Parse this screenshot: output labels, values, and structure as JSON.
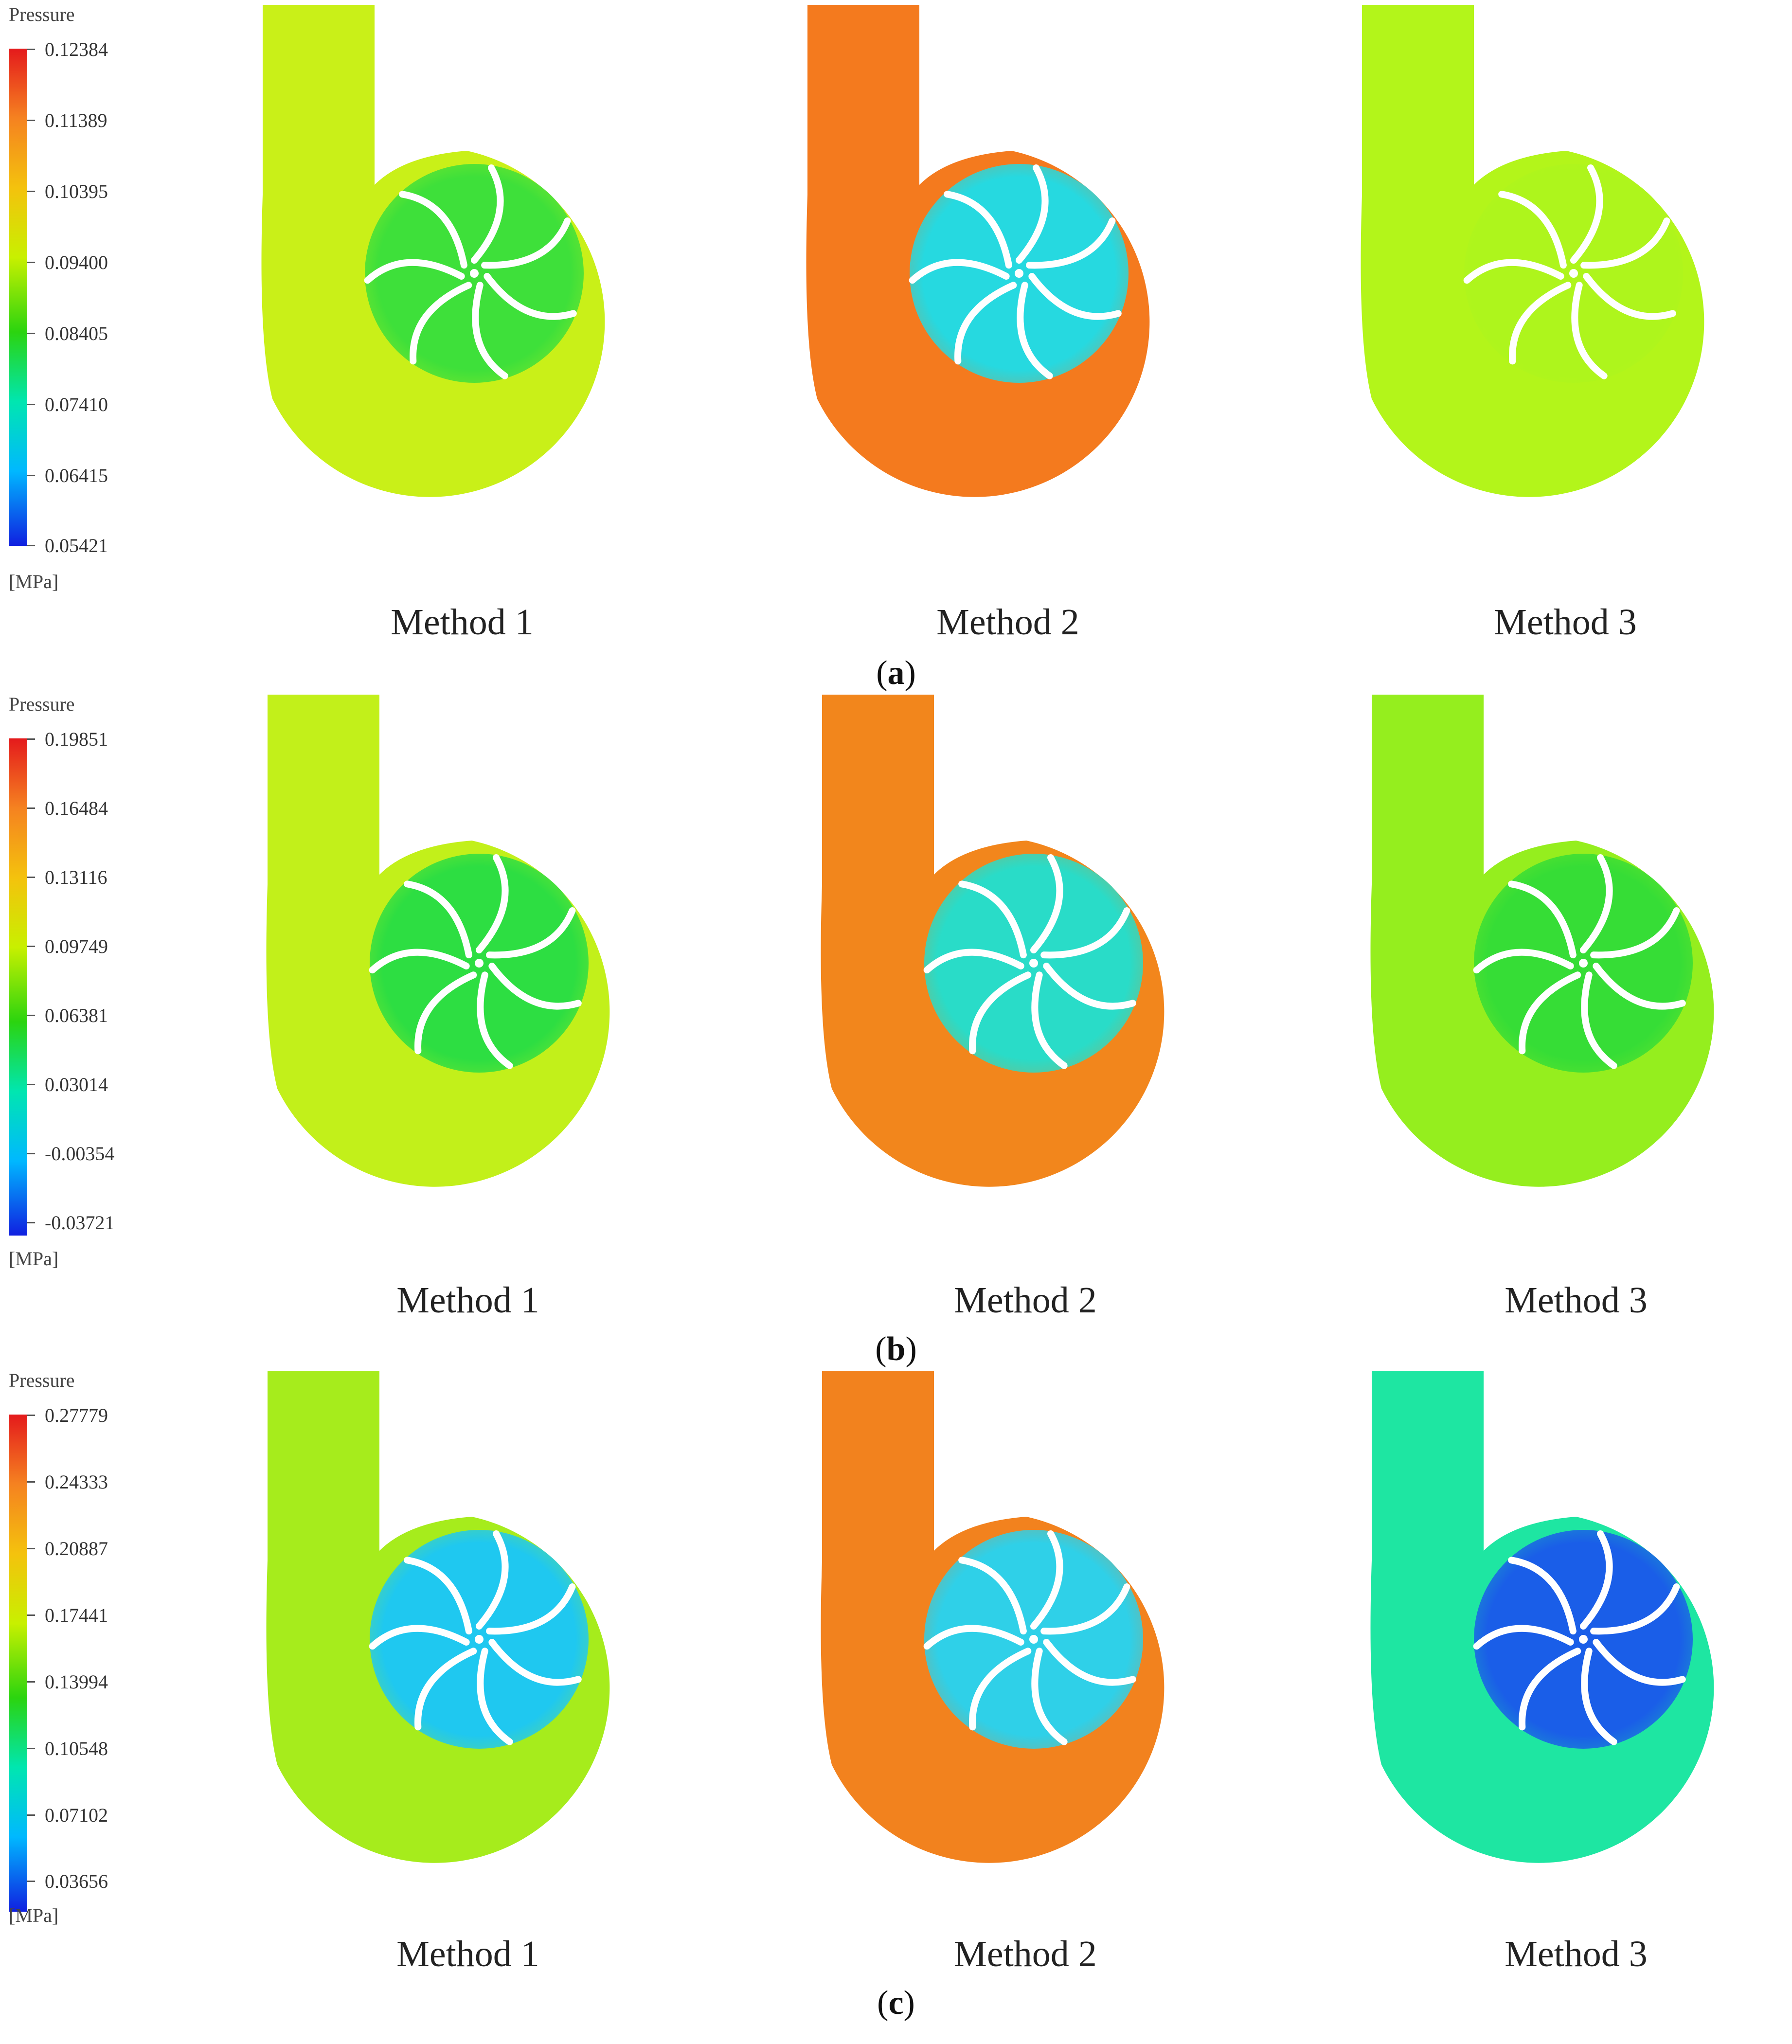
{
  "panels": [
    {
      "label_open": "(",
      "label_letter": "a",
      "label_close": ")",
      "legend": {
        "title": "Pressure",
        "unit": "[MPa]",
        "ticks": [
          "0.12384",
          "0.11389",
          "0.10395",
          "0.09400",
          "0.08405",
          "0.07410",
          "0.06415",
          "0.05421"
        ]
      },
      "methods": [
        {
          "name": "Method 1",
          "outer_color": "#c9f018",
          "inner_color": "#3ee03a"
        },
        {
          "name": "Method 2",
          "outer_color": "#f47a1e",
          "inner_color": "#26d9e0"
        },
        {
          "name": "Method 3",
          "outer_color": "#b3f51a",
          "inner_color": "#aef51c"
        }
      ]
    },
    {
      "label_open": "(",
      "label_letter": "b",
      "label_close": ")",
      "legend": {
        "title": "Pressure",
        "unit": "[MPa]",
        "ticks": [
          "0.19851",
          "0.16484",
          "0.13116",
          "0.09749",
          "0.06381",
          "0.03014",
          "-0.00354",
          "-0.03721"
        ]
      },
      "methods": [
        {
          "name": "Method 1",
          "outer_color": "#c2f01a",
          "inner_color": "#2dde42"
        },
        {
          "name": "Method 2",
          "outer_color": "#f2861c",
          "inner_color": "#29dcc8"
        },
        {
          "name": "Method 3",
          "outer_color": "#95ee1e",
          "inner_color": "#36dd36"
        }
      ]
    },
    {
      "label_open": "(",
      "label_letter": "c",
      "label_close": ")",
      "legend": {
        "title": "Pressure",
        "unit": "[MPa]",
        "ticks": [
          "0.27779",
          "0.24333",
          "0.20887",
          "0.17441",
          "0.13994",
          "0.10548",
          "0.07102",
          "0.03656"
        ]
      },
      "methods": [
        {
          "name": "Method 1",
          "outer_color": "#a6ec1c",
          "inner_color": "#1fc8f0"
        },
        {
          "name": "Method 2",
          "outer_color": "#f2821e",
          "inner_color": "#2fd0e8"
        },
        {
          "name": "Method 3",
          "outer_color": "#1ee6a2",
          "inner_color": "#1a5ee8"
        }
      ]
    }
  ]
}
